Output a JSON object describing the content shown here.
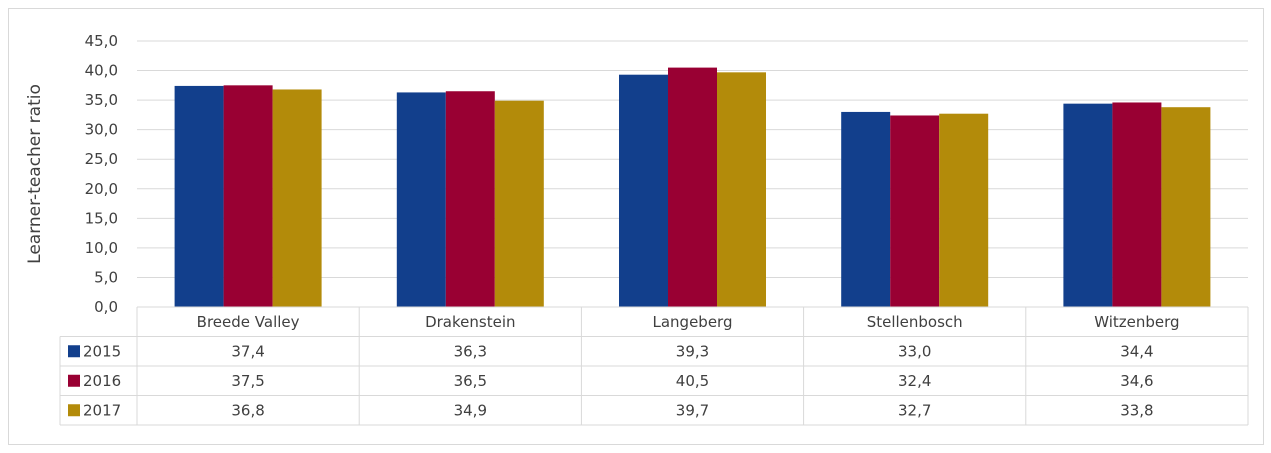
{
  "chart_data": {
    "type": "bar",
    "ylabel": "Learner-teacher ratio",
    "ylim": [
      0,
      45
    ],
    "yticks": [
      "0,0",
      "5,0",
      "10,0",
      "15,0",
      "20,0",
      "25,0",
      "30,0",
      "35,0",
      "40,0",
      "45,0"
    ],
    "grid": true,
    "categories": [
      "Breede Valley",
      "Drakenstein",
      "Langeberg",
      "Stellenbosch",
      "Witzenberg"
    ],
    "series": [
      {
        "name": "2015",
        "color": "#123f8c",
        "values": [
          37.4,
          36.3,
          39.3,
          33.0,
          34.4
        ],
        "labels": [
          "37,4",
          "36,3",
          "39,3",
          "33,0",
          "34,4"
        ]
      },
      {
        "name": "2016",
        "color": "#990033",
        "values": [
          37.5,
          36.5,
          40.5,
          32.4,
          34.6
        ],
        "labels": [
          "37,5",
          "36,5",
          "40,5",
          "32,4",
          "34,6"
        ]
      },
      {
        "name": "2017",
        "color": "#b38b0a",
        "values": [
          36.8,
          34.9,
          39.7,
          32.7,
          33.8
        ],
        "labels": [
          "36,8",
          "34,9",
          "39,7",
          "32,7",
          "33,8"
        ]
      }
    ],
    "legend": "data-table"
  }
}
